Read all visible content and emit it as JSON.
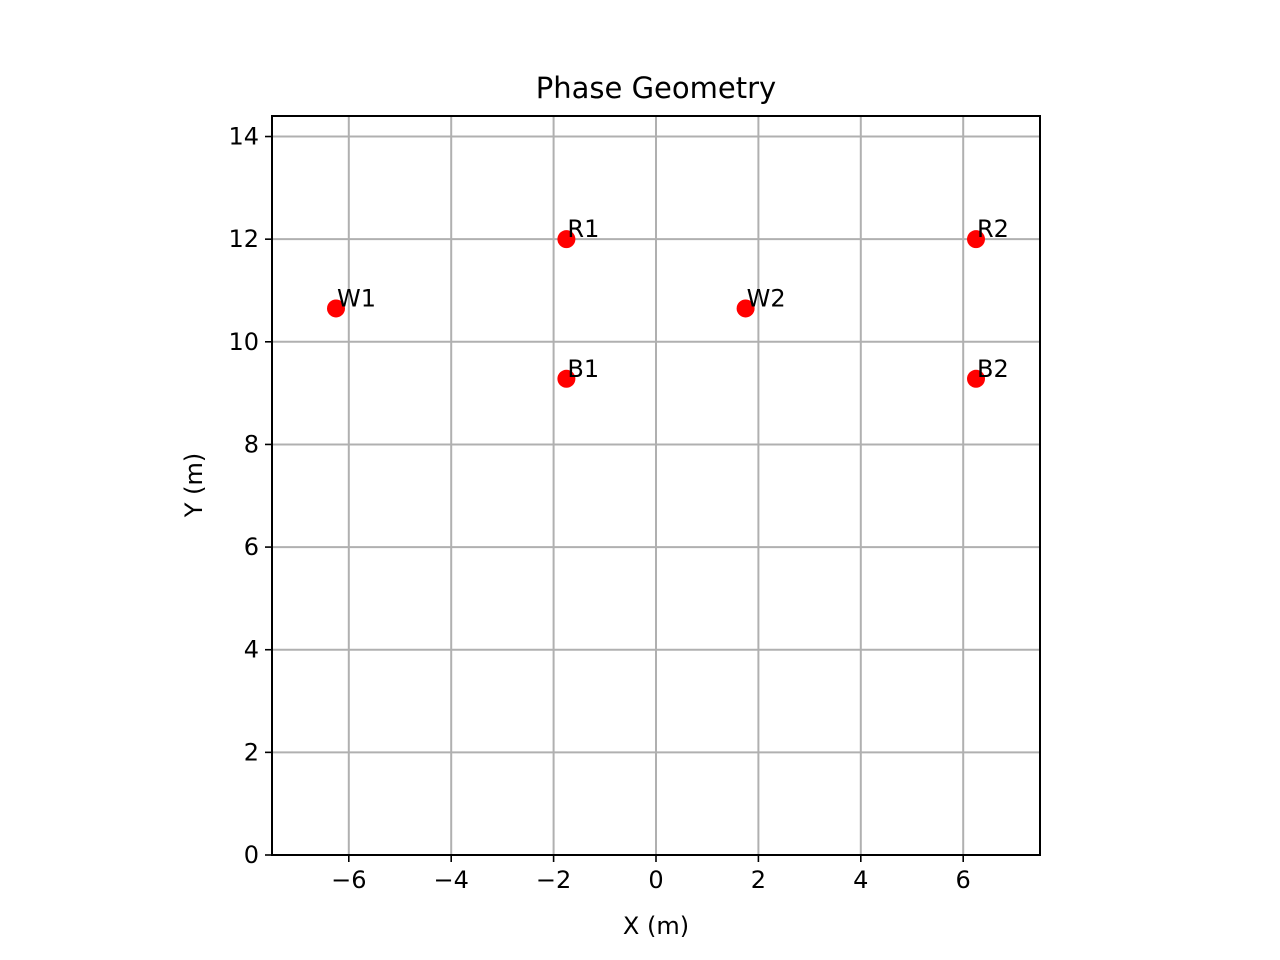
{
  "chart_data": {
    "type": "scatter",
    "title": "Phase Geometry",
    "xlabel": "X (m)",
    "ylabel": "Y (m)",
    "xlim": [
      -7.5,
      7.5
    ],
    "ylim": [
      0,
      14.4
    ],
    "xticks": [
      -6,
      -4,
      -2,
      0,
      2,
      4,
      6
    ],
    "xtick_labels": [
      "−6",
      "−4",
      "−2",
      "0",
      "2",
      "4",
      "6"
    ],
    "yticks": [
      0,
      2,
      4,
      6,
      8,
      10,
      12,
      14
    ],
    "ytick_labels": [
      "0",
      "2",
      "4",
      "6",
      "8",
      "10",
      "12",
      "14"
    ],
    "grid": true,
    "marker_color": "#ff0000",
    "points": [
      {
        "label": "W1",
        "x": -6.25,
        "y": 10.65
      },
      {
        "label": "R1",
        "x": -1.75,
        "y": 12.0
      },
      {
        "label": "B1",
        "x": -1.75,
        "y": 9.28
      },
      {
        "label": "W2",
        "x": 1.75,
        "y": 10.65
      },
      {
        "label": "R2",
        "x": 6.25,
        "y": 12.0
      },
      {
        "label": "B2",
        "x": 6.25,
        "y": 9.28
      }
    ]
  }
}
